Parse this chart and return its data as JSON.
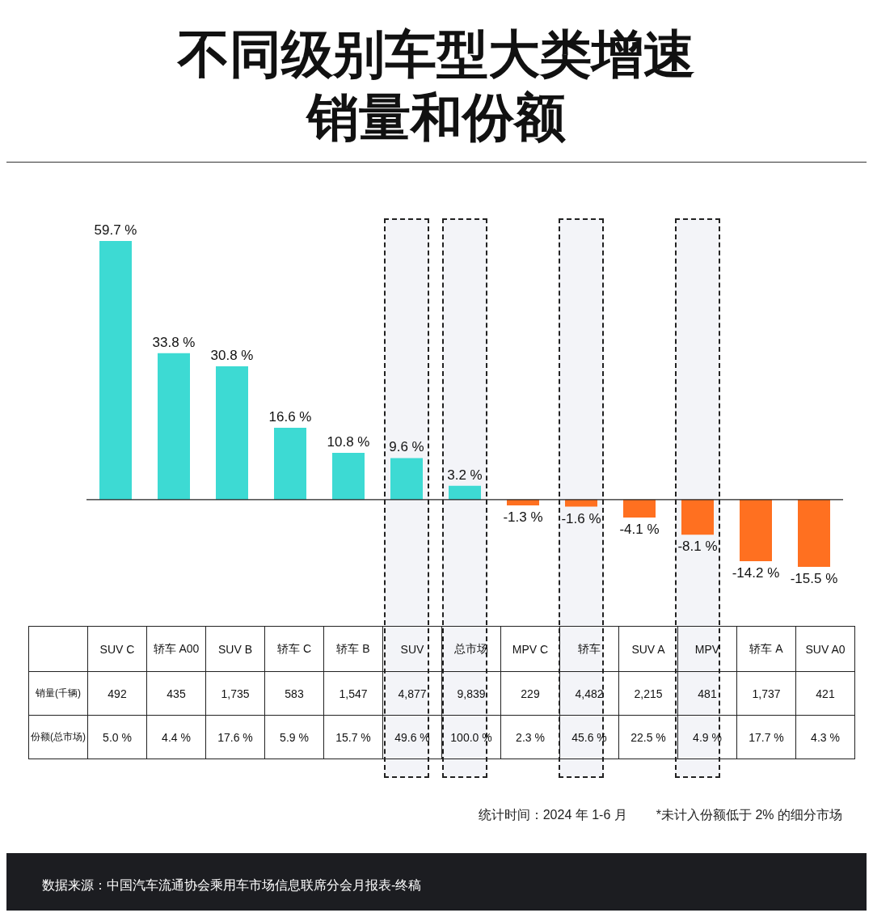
{
  "chart_data": {
    "type": "bar",
    "title": "不同级别车型大类增速销量和份额",
    "categories": [
      "SUV C",
      "轿车 A00",
      "SUV B",
      "轿车 C",
      "轿车 B",
      "SUV",
      "总市场",
      "MPV C",
      "轿车",
      "SUV A",
      "MPV",
      "轿车 A",
      "SUV A0"
    ],
    "values": [
      59.7,
      33.8,
      30.8,
      16.6,
      10.8,
      9.6,
      3.2,
      -1.3,
      -1.6,
      -4.1,
      -8.1,
      -14.2,
      -15.5
    ],
    "colors": [
      "#3ddad3",
      "#3ddad3",
      "#3ddad3",
      "#3ddad3",
      "#3ddad3",
      "#3ddad3",
      "#3ddad3",
      "#ff7020",
      "#ff7020",
      "#ff7020",
      "#ff7020",
      "#ff7020",
      "#ff7020"
    ],
    "value_labels": [
      "59.7 %",
      "33.8 %",
      "30.8 %",
      "16.6 %",
      "10.8 %",
      "9.6 %",
      "3.2 %",
      "-1.3 %",
      "-1.6 %",
      "-4.1 %",
      "-8.1 %",
      "-14.2 %",
      "-15.5 %"
    ],
    "ref_lines": [
      {
        "axis": "y",
        "value": 0,
        "color": "#222222"
      }
    ],
    "bands": [
      {
        "axis": "x",
        "from": "SUV",
        "to": "SUV",
        "color": "#f3f4f8"
      },
      {
        "axis": "x",
        "from": "总市场",
        "to": "总市场",
        "color": "#f3f4f8"
      },
      {
        "axis": "x",
        "from": "轿车",
        "to": "轿车",
        "color": "#f3f4f8"
      },
      {
        "axis": "x",
        "from": "MPV",
        "to": "MPV",
        "color": "#f3f4f8"
      }
    ],
    "annotations": [
      "销量(千辆)",
      "492",
      "435",
      "1,735",
      "583",
      "1,547",
      "4,877",
      "9,839",
      "229",
      "4,482",
      "2,215",
      "481",
      "1,737",
      "421",
      "份额(总市场)",
      "5.0 %",
      "4.4 %",
      "17.6 %",
      "5.9 %",
      "15.7 %",
      "49.6 %",
      "100.0 %",
      "2.3 %",
      "45.6 %",
      "22.5 %",
      "4.9 %",
      "17.7 %",
      "4.3 %",
      "统计时间：2024 年 1-6 月",
      "*未计入份额低于 2% 的细分市场",
      "数据来源：中国汽车流通协会乘用车市场信息联席分会月报表-终稿"
    ]
  }
}
